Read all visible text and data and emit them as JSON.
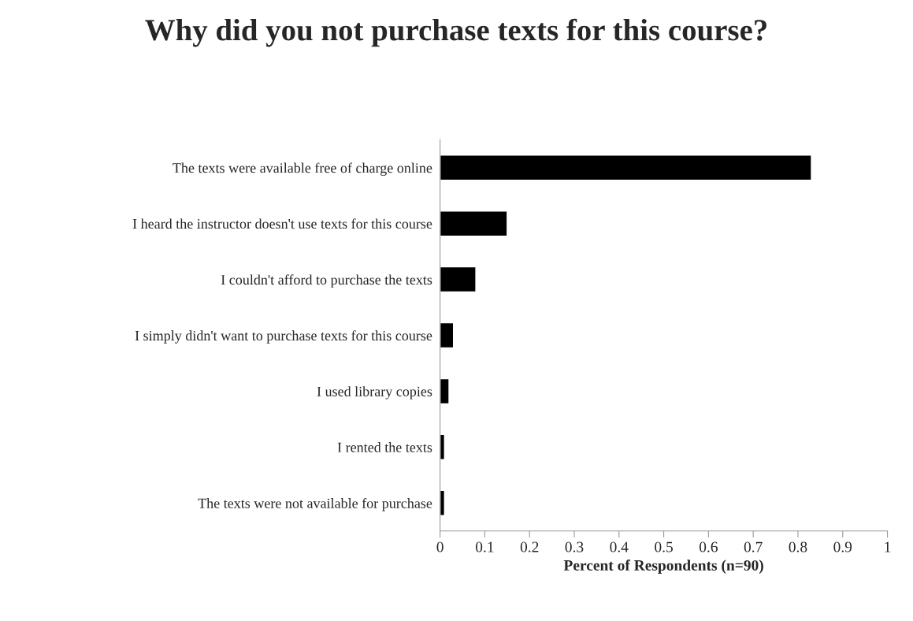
{
  "chart_data": {
    "type": "bar",
    "orientation": "horizontal",
    "title": "Why did you not purchase texts for this course?",
    "xlabel": "Percent of Respondents (n=90)",
    "categories": [
      "The texts were available free of charge online",
      "I heard the instructor doesn't use texts for this course",
      "I couldn't afford to purchase the texts",
      "I simply didn't want to purchase texts for this course",
      "I used library copies",
      "I rented the texts",
      "The texts were not available for purchase"
    ],
    "values": [
      0.83,
      0.15,
      0.08,
      0.03,
      0.02,
      0.01,
      0.01
    ],
    "color": "#000000",
    "xlim": [
      0,
      1
    ],
    "xticks": [
      0,
      0.1,
      0.2,
      0.3,
      0.4,
      0.5,
      0.6,
      0.7,
      0.8,
      0.9,
      1
    ],
    "grid": false,
    "legend": false
  }
}
